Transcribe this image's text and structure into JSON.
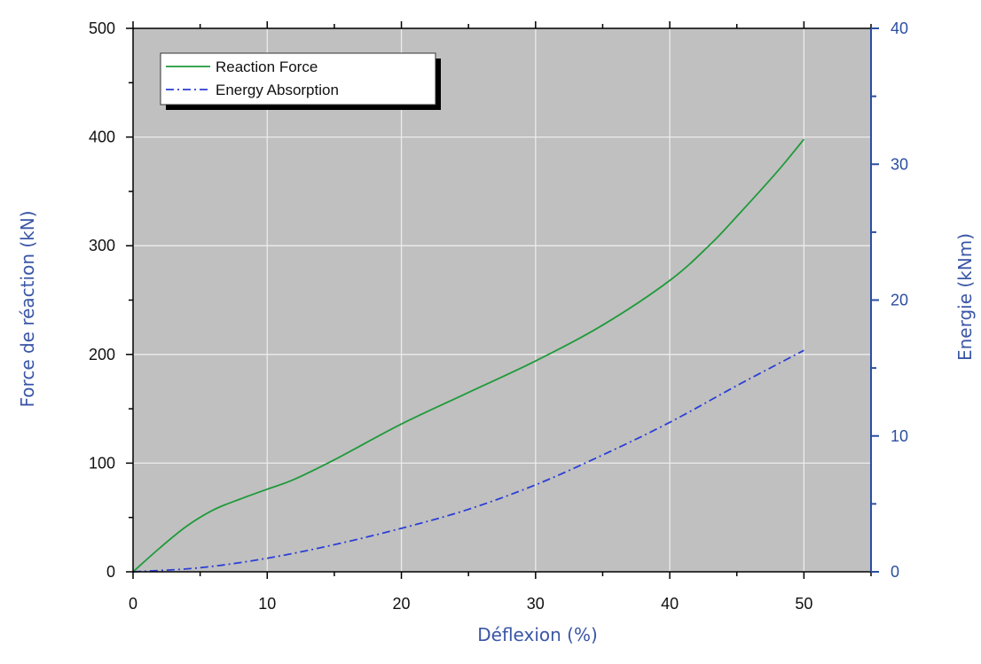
{
  "chart_data": {
    "type": "line",
    "x_axis": {
      "label": "Déflexion (%)",
      "range": [
        0,
        55
      ],
      "ticks": [
        0,
        10,
        20,
        30,
        40,
        50
      ],
      "minor_step": 5
    },
    "y_axis_left": {
      "label": "Force de réaction (kN)",
      "range": [
        0,
        500
      ],
      "ticks": [
        0,
        100,
        200,
        300,
        400,
        500
      ],
      "minor_step": 50
    },
    "y_axis_right": {
      "label": "Energie (kNm)",
      "range": [
        0,
        40
      ],
      "ticks": [
        0,
        10,
        20,
        30,
        40
      ],
      "minor_step": 5,
      "color": "#2a4fa0"
    },
    "grid": true,
    "plot_background": "#c0c0c0",
    "legend": {
      "position": "top-left",
      "entries": [
        "Reaction Force",
        "Energy Absorption"
      ]
    },
    "series": [
      {
        "name": "Reaction Force",
        "axis": "left",
        "color": "#1f9a3a",
        "style": "solid",
        "x": [
          0,
          2,
          4,
          6,
          8,
          10,
          12,
          15,
          20,
          25,
          30,
          35,
          40,
          43,
          45,
          48,
          50
        ],
        "y": [
          0,
          22,
          42,
          57,
          67,
          76,
          85,
          103,
          136,
          165,
          194,
          227,
          268,
          301,
          327,
          368,
          398
        ]
      },
      {
        "name": "Energy Absorption",
        "axis": "right",
        "color": "#2b3fd6",
        "style": "dashdot",
        "x": [
          0,
          5,
          10,
          15,
          20,
          25,
          30,
          35,
          40,
          45,
          50
        ],
        "y": [
          0,
          0.3,
          1.0,
          2.0,
          3.2,
          4.6,
          6.4,
          8.6,
          11.0,
          13.7,
          16.3
        ]
      }
    ]
  }
}
